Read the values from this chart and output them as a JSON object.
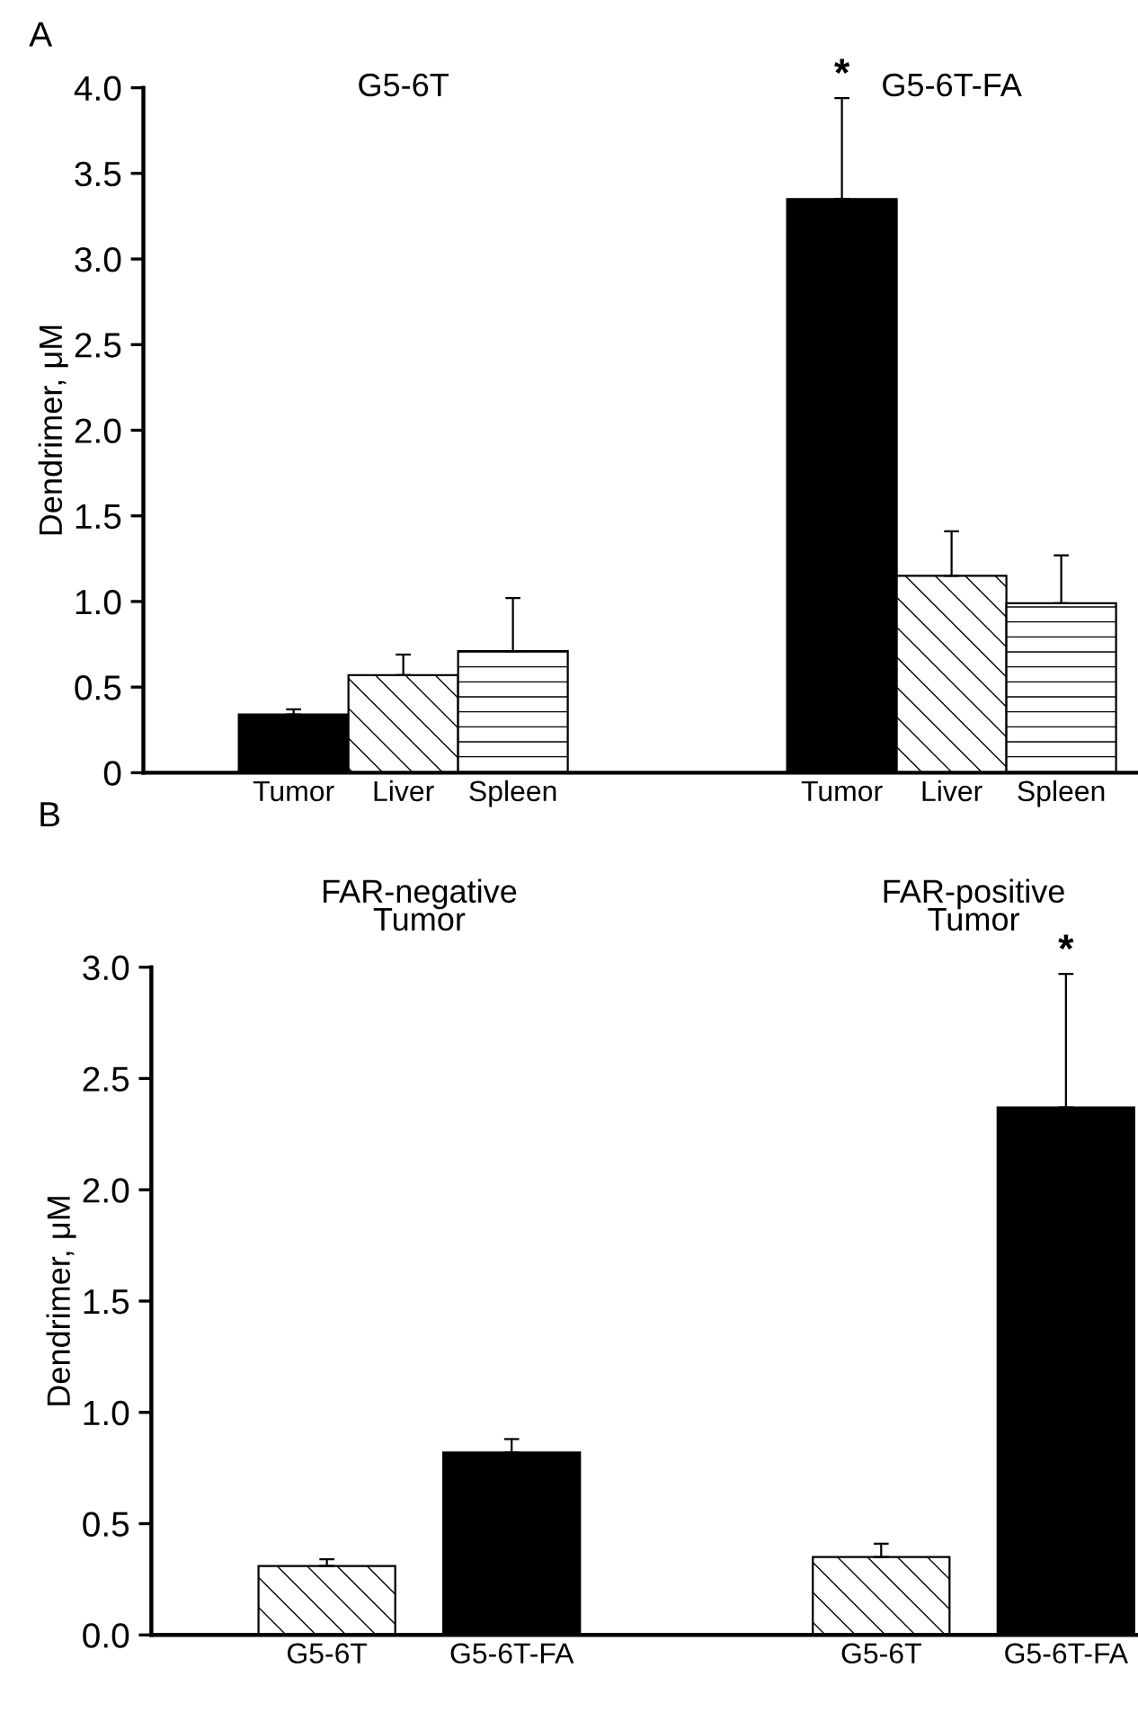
{
  "chart_data": [
    {
      "type": "bar",
      "ylabel": "Dendrimer, μM",
      "categories": [
        "Tumor",
        "Liver",
        "Spleen",
        null,
        null,
        "Tumor",
        "Liver",
        "Spleen"
      ],
      "values": [
        0.34,
        0.57,
        0.71,
        null,
        null,
        3.35,
        1.15,
        0.99
      ],
      "colors": [
        "#000000",
        "#ffffff",
        "#ffffff",
        null,
        null,
        "#000000",
        "#ffffff",
        "#ffffff"
      ],
      "errors": [
        [
          0.34,
          0.37
        ],
        [
          0.57,
          0.69
        ],
        [
          0.71,
          1.02
        ],
        null,
        null,
        [
          3.35,
          3.94
        ],
        [
          1.15,
          1.41
        ],
        [
          0.99,
          1.27
        ]
      ],
      "ylim": [
        0,
        4.0
      ],
      "yticks": [
        0,
        0.5,
        {
          "value": 1,
          "label": "1.0"
        },
        1.5,
        {
          "value": 2,
          "label": "2.0"
        },
        2.5,
        {
          "value": 3,
          "label": "3.0"
        },
        3.5,
        {
          "value": 4,
          "label": "4.0"
        }
      ],
      "annotations": [
        "A",
        "G5-6T",
        "G5-6T-FA",
        "*"
      ]
    },
    {
      "type": "bar",
      "ylabel": "Dendrimer, μM",
      "categories": [
        "G5-6T",
        "G5-6T-FA",
        null,
        "G5-6T",
        "G5-6T-FA"
      ],
      "values": [
        0.31,
        0.82,
        null,
        0.35,
        2.37
      ],
      "colors": [
        "#ffffff",
        "#000000",
        null,
        "#ffffff",
        "#000000"
      ],
      "errors": [
        [
          0.31,
          0.34
        ],
        [
          0.82,
          0.88
        ],
        null,
        [
          0.35,
          0.41
        ],
        [
          2.37,
          2.97
        ]
      ],
      "ylim": [
        0,
        3.0
      ],
      "yticks": [
        {
          "value": 0,
          "label": "0.0"
        },
        0.5,
        {
          "value": 1,
          "label": "1.0"
        },
        1.5,
        {
          "value": 2,
          "label": "2.0"
        },
        2.5,
        {
          "value": 3,
          "label": "3.0"
        }
      ],
      "annotations": [
        "B",
        "FAR-negative\nTumor",
        "FAR-positive\nTumor",
        "*"
      ]
    }
  ]
}
